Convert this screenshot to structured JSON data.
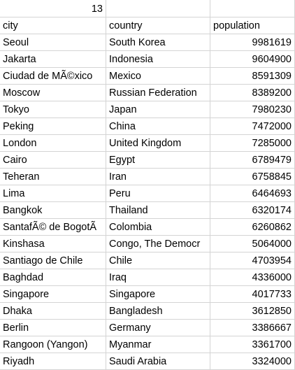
{
  "sheet": {
    "top_value": "13",
    "headers": [
      "city",
      "country",
      "population"
    ],
    "rows": [
      [
        "Seoul",
        "South Korea",
        "9981619"
      ],
      [
        "Jakarta",
        "Indonesia",
        "9604900"
      ],
      [
        "Ciudad de MÃ©xico",
        "Mexico",
        "8591309"
      ],
      [
        "Moscow",
        "Russian Federation",
        "8389200"
      ],
      [
        "Tokyo",
        "Japan",
        "7980230"
      ],
      [
        "Peking",
        "China",
        "7472000"
      ],
      [
        "London",
        "United Kingdom",
        "7285000"
      ],
      [
        "Cairo",
        "Egypt",
        "6789479"
      ],
      [
        "Teheran",
        "Iran",
        "6758845"
      ],
      [
        "Lima",
        "Peru",
        "6464693"
      ],
      [
        "Bangkok",
        "Thailand",
        "6320174"
      ],
      [
        "SantafÃ© de BogotÃ",
        "Colombia",
        "6260862"
      ],
      [
        "Kinshasa",
        "Congo, The Democr",
        "5064000"
      ],
      [
        "Santiago de Chile",
        "Chile",
        "4703954"
      ],
      [
        "Baghdad",
        "Iraq",
        "4336000"
      ],
      [
        "Singapore",
        "Singapore",
        "4017733"
      ],
      [
        "Dhaka",
        "Bangladesh",
        "3612850"
      ],
      [
        "Berlin",
        "Germany",
        "3386667"
      ],
      [
        "Rangoon (Yangon)",
        "Myanmar",
        "3361700"
      ],
      [
        "Riyadh",
        "Saudi Arabia",
        "3324000"
      ]
    ]
  }
}
